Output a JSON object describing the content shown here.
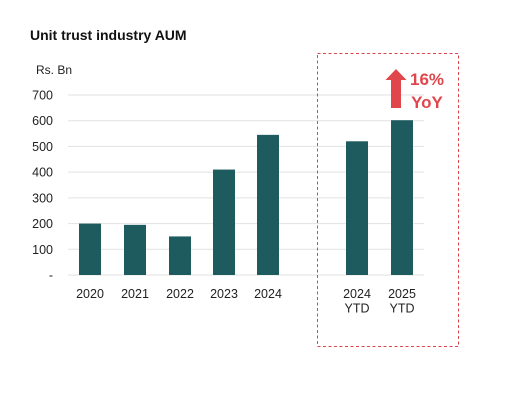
{
  "chart_data": {
    "type": "bar",
    "title": "Unit trust industry AUM",
    "unit_label": "Rs. Bn",
    "categories": [
      [
        "2020"
      ],
      [
        "2021"
      ],
      [
        "2022"
      ],
      [
        "2023"
      ],
      [
        "2024"
      ],
      [
        "2024",
        "YTD"
      ],
      [
        "2025",
        "YTD"
      ]
    ],
    "values": [
      200,
      195,
      150,
      410,
      545,
      520,
      602
    ],
    "ylim": [
      0,
      700
    ],
    "yticks": [
      {
        "value": 0,
        "label": "-"
      },
      {
        "value": 100,
        "label": "100"
      },
      {
        "value": 200,
        "label": "200"
      },
      {
        "value": 300,
        "label": "300"
      },
      {
        "value": 400,
        "label": "400"
      },
      {
        "value": 500,
        "label": "500"
      },
      {
        "value": 600,
        "label": "600"
      },
      {
        "value": 700,
        "label": "700"
      }
    ],
    "grid": true,
    "bar_color": "#1e5b5e",
    "highlight": {
      "categories": [
        5,
        6
      ],
      "border_color": "#e0474c",
      "style": "dashed"
    },
    "annotation": {
      "lines": [
        "16%",
        "YoY"
      ],
      "color": "#e0474c",
      "icon": "arrow-up-icon",
      "target_category": 6
    }
  }
}
